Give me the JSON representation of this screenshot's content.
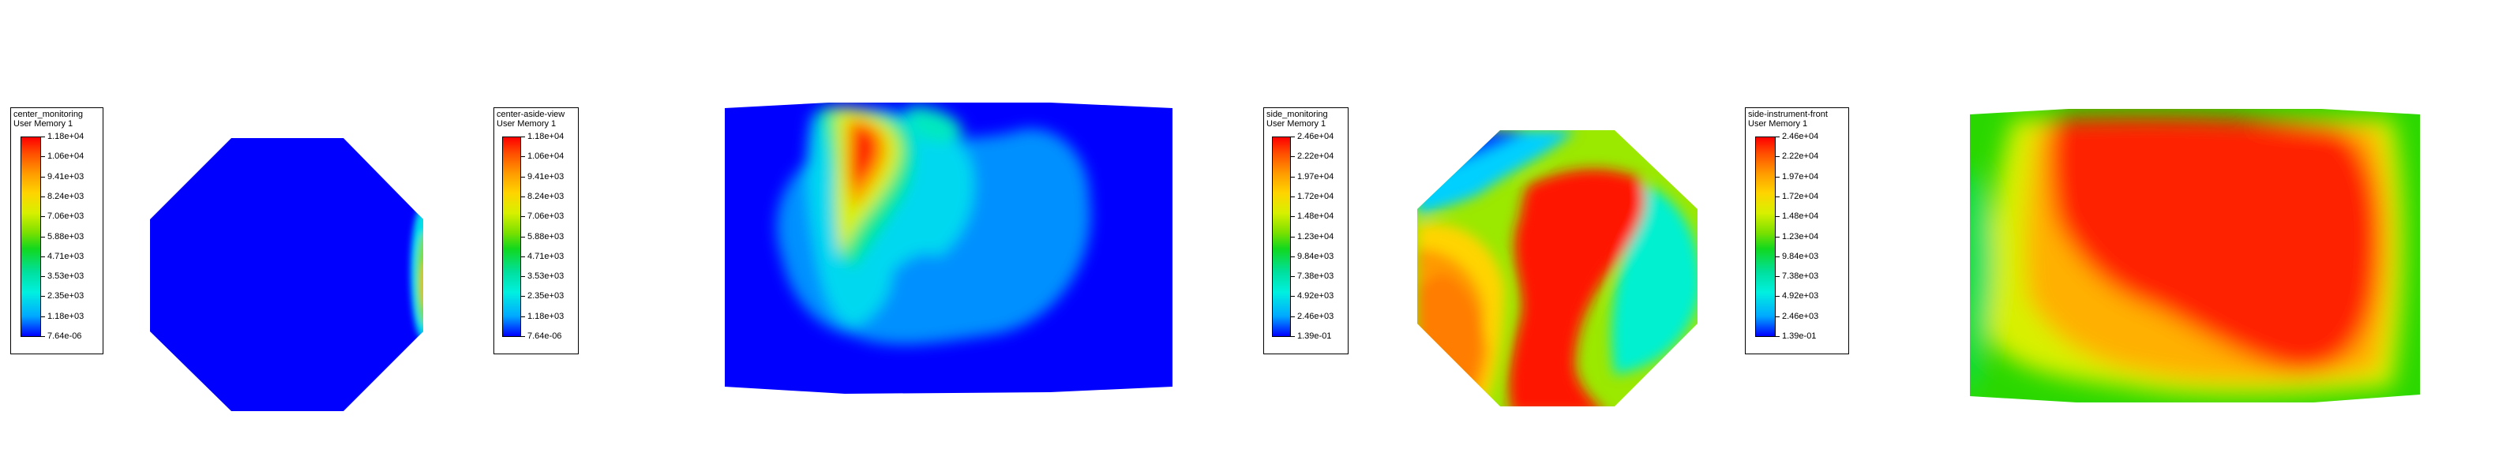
{
  "legends": [
    {
      "title": "center_monitoring",
      "subtitle": "User Memory 1",
      "values": [
        "1.18e+04",
        "1.06e+04",
        "9.41e+03",
        "8.24e+03",
        "7.06e+03",
        "5.88e+03",
        "4.71e+03",
        "3.53e+03",
        "2.35e+03",
        "1.18e+03",
        "7.64e-06"
      ]
    },
    {
      "title": "center-aside-view",
      "subtitle": "User Memory 1",
      "values": [
        "1.18e+04",
        "1.06e+04",
        "9.41e+03",
        "8.24e+03",
        "7.06e+03",
        "5.88e+03",
        "4.71e+03",
        "3.53e+03",
        "2.35e+03",
        "1.18e+03",
        "7.64e-06"
      ]
    },
    {
      "title": "side_monitoring",
      "subtitle": "User Memory 1",
      "values": [
        "2.46e+04",
        "2.22e+04",
        "1.97e+04",
        "1.72e+04",
        "1.48e+04",
        "1.23e+04",
        "9.84e+03",
        "7.38e+03",
        "4.92e+03",
        "2.46e+03",
        "1.39e-01"
      ]
    },
    {
      "title": "side-instrument-front",
      "subtitle": "User Memory 1",
      "values": [
        "2.46e+04",
        "2.22e+04",
        "1.97e+04",
        "1.72e+04",
        "1.48e+04",
        "1.23e+04",
        "9.84e+03",
        "7.38e+03",
        "4.92e+03",
        "2.46e+03",
        "1.39e-01"
      ]
    }
  ],
  "colormap": [
    "#0000ff",
    "#00a8ff",
    "#00f0e0",
    "#00e0a0",
    "#12d81e",
    "#7be000",
    "#d8f000",
    "#ffd400",
    "#ff9a00",
    "#ff4d00",
    "#ff0000"
  ]
}
